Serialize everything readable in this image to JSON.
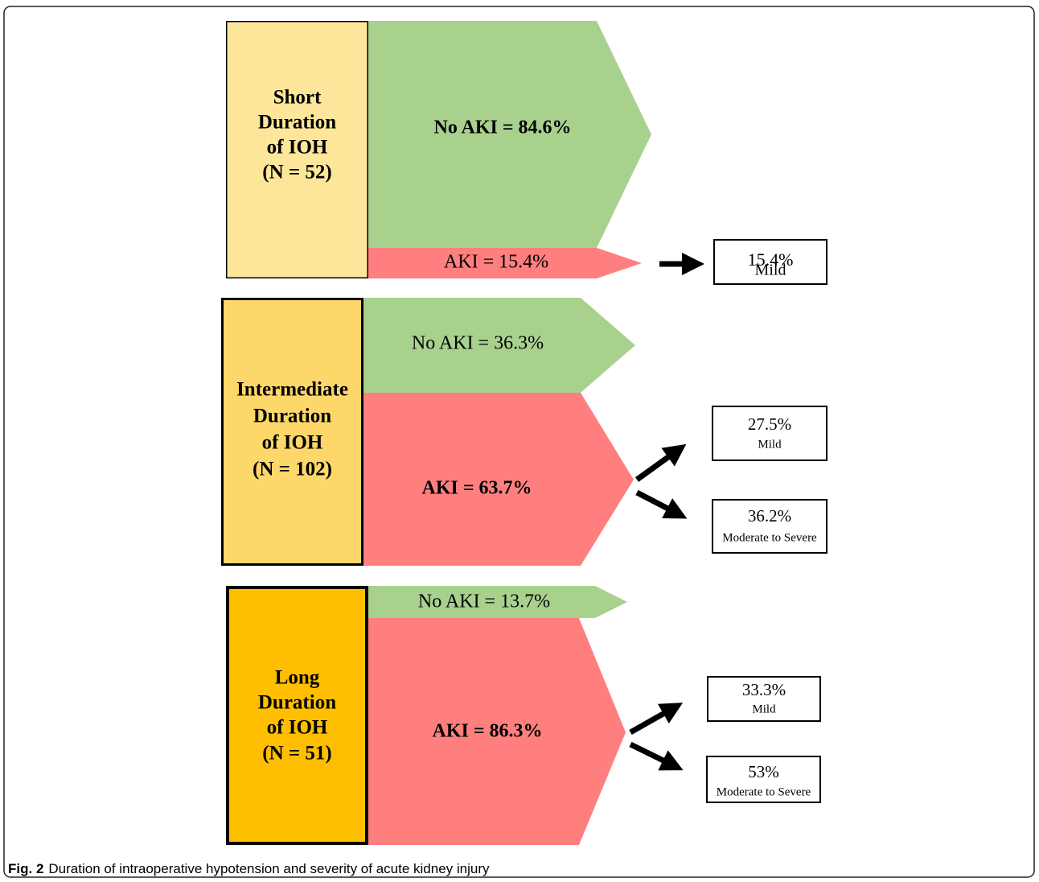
{
  "groups": [
    {
      "label": [
        "Short",
        "Duration",
        "of IOH",
        "(N = 52)"
      ],
      "flows": [
        "No AKI = 84.6%",
        "AKI = 15.4%"
      ],
      "outcomes": [
        {
          "percent": "15.4%",
          "severity": "Mild"
        }
      ]
    },
    {
      "label": [
        "Intermediate",
        "Duration",
        "of IOH",
        "(N = 102)"
      ],
      "flows": [
        "No AKI = 36.3%",
        "AKI = 63.7%"
      ],
      "outcomes": [
        {
          "percent": "27.5%",
          "severity": "Mild"
        },
        {
          "percent": "36.2%",
          "severity": "Moderate to Severe"
        }
      ]
    },
    {
      "label": [
        "Long",
        "Duration",
        "of IOH",
        "(N = 51)"
      ],
      "flows": [
        "No AKI = 13.7%",
        "AKI = 86.3%"
      ],
      "outcomes": [
        {
          "percent": "33.3%",
          "severity": "Mild"
        },
        {
          "percent": "53%",
          "severity": "Moderate to Severe"
        }
      ]
    }
  ],
  "caption": {
    "label": "Fig. 2",
    "text": "Duration of intraoperative hypotension and severity of acute kidney injury"
  }
}
